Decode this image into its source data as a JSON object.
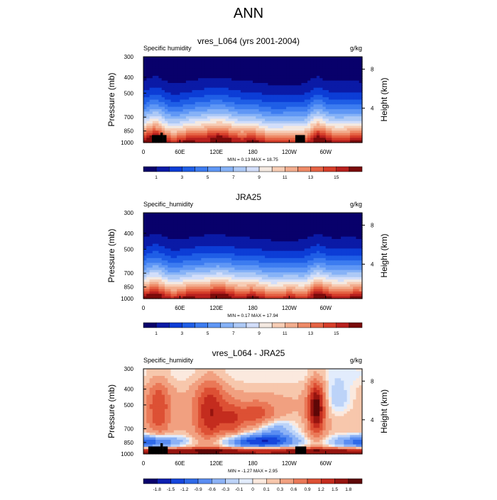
{
  "page_title": "ANN",
  "panels": [
    {
      "title": "vres_L064 (yrs 2001-2004)",
      "left_label": "Specific humidity",
      "right_label": "g/kg",
      "minmax": "MIN =   0.13  MAX =  18.75",
      "colorbar": [
        "1",
        "3",
        "5",
        "7",
        "9",
        "11",
        "13",
        "15"
      ]
    },
    {
      "title": "JRA25",
      "left_label": "Specific_humidity",
      "right_label": "g/kg",
      "minmax": "MIN =   0.17  MAX =  17.94",
      "colorbar": [
        "1",
        "3",
        "5",
        "7",
        "9",
        "11",
        "13",
        "15"
      ]
    },
    {
      "title": "vres_L064 - JRA25",
      "left_label": "Specific_humidity",
      "right_label": "g/kg",
      "minmax": "MIN =  -1.27  MAX =   2.95",
      "colorbar": [
        "-1.8",
        "-1.5",
        "-1.2",
        "-0.9",
        "-0.6",
        "-0.3",
        "-0.1",
        "0",
        "0.1",
        "0.3",
        "0.6",
        "0.9",
        "1.2",
        "1.5",
        "1.8"
      ]
    }
  ],
  "chart_data": [
    {
      "type": "heatmap",
      "title": "vres_L064 (yrs 2001-2004)",
      "ylabel": "Pressure (mb)",
      "y2label": "Height (km)",
      "xticks": [
        "0",
        "60E",
        "120E",
        "180",
        "120W",
        "60W"
      ],
      "xtick_lon": [
        0,
        60,
        120,
        180,
        240,
        300
      ],
      "xlim": [
        0,
        360
      ],
      "yticks": [
        300,
        400,
        500,
        700,
        850,
        1000
      ],
      "ylim": [
        1000,
        300
      ],
      "y2ticks": [
        "8",
        "4"
      ],
      "y2tick_pressure": [
        357,
        617
      ],
      "units": "g/kg",
      "min": 0.13,
      "max": 18.75,
      "levels": [
        1,
        2,
        3,
        4,
        5,
        6,
        7,
        8,
        9,
        10,
        11,
        12,
        13,
        14,
        15,
        16
      ],
      "colors": [
        "#08006b",
        "#0a1aa6",
        "#0c3dd6",
        "#1f5ee6",
        "#3d7cf0",
        "#5f97f5",
        "#86b2f7",
        "#adc9f6",
        "#d2defa",
        "#f4e9e1",
        "#f7cdb5",
        "#f2ad8e",
        "#ee8a67",
        "#e56344",
        "#d63e2a",
        "#b8201e",
        "#7a0b0b"
      ],
      "terrain": [
        [
          14,
          28,
          900
        ],
        [
          28,
          32,
          870
        ],
        [
          32,
          38,
          900
        ],
        [
          250,
          266,
          900
        ]
      ]
    },
    {
      "type": "heatmap",
      "title": "JRA25",
      "ylabel": "Pressure (mb)",
      "y2label": "Height (km)",
      "xticks": [
        "0",
        "60E",
        "120E",
        "180",
        "120W",
        "60W"
      ],
      "xtick_lon": [
        0,
        60,
        120,
        180,
        240,
        300
      ],
      "xlim": [
        0,
        360
      ],
      "yticks": [
        300,
        400,
        500,
        700,
        850,
        1000
      ],
      "ylim": [
        1000,
        300
      ],
      "y2ticks": [
        "8",
        "4"
      ],
      "y2tick_pressure": [
        357,
        617
      ],
      "units": "g/kg",
      "min": 0.17,
      "max": 17.94,
      "levels": [
        1,
        2,
        3,
        4,
        5,
        6,
        7,
        8,
        9,
        10,
        11,
        12,
        13,
        14,
        15,
        16
      ],
      "colors": [
        "#08006b",
        "#0a1aa6",
        "#0c3dd6",
        "#1f5ee6",
        "#3d7cf0",
        "#5f97f5",
        "#86b2f7",
        "#adc9f6",
        "#d2defa",
        "#f4e9e1",
        "#f7cdb5",
        "#f2ad8e",
        "#ee8a67",
        "#e56344",
        "#d63e2a",
        "#b8201e",
        "#7a0b0b"
      ],
      "terrain": []
    },
    {
      "type": "heatmap",
      "title": "vres_L064 - JRA25",
      "ylabel": "Pressure (mb)",
      "y2label": "Height (km)",
      "xticks": [
        "0",
        "60E",
        "120E",
        "180",
        "120W",
        "60W"
      ],
      "xtick_lon": [
        0,
        60,
        120,
        180,
        240,
        300
      ],
      "xlim": [
        0,
        360
      ],
      "yticks": [
        300,
        400,
        500,
        700,
        850,
        1000
      ],
      "ylim": [
        1000,
        300
      ],
      "y2ticks": [
        "8",
        "4"
      ],
      "y2tick_pressure": [
        357,
        617
      ],
      "units": "g/kg",
      "min": -1.27,
      "max": 2.95,
      "levels": [
        -1.8,
        -1.5,
        -1.2,
        -0.9,
        -0.6,
        -0.3,
        -0.1,
        0,
        0.1,
        0.3,
        0.6,
        0.9,
        1.2,
        1.5,
        1.8
      ],
      "colors": [
        "#08006b",
        "#0c1fb0",
        "#1646dc",
        "#2f6ae8",
        "#5a8df2",
        "#8cb2f6",
        "#bcd3f8",
        "#e2ecfc",
        "#fbe9de",
        "#f7c7ac",
        "#f1a080",
        "#ea7857",
        "#dd5034",
        "#c42c1e",
        "#96140f",
        "#5e0707"
      ],
      "terrain": [
        [
          8,
          28,
          900
        ],
        [
          28,
          32,
          860
        ],
        [
          32,
          40,
          900
        ],
        [
          250,
          268,
          900
        ]
      ]
    }
  ],
  "colors": {
    "background": "#ffffff",
    "terrain": "#000000",
    "axis": "#000000"
  }
}
